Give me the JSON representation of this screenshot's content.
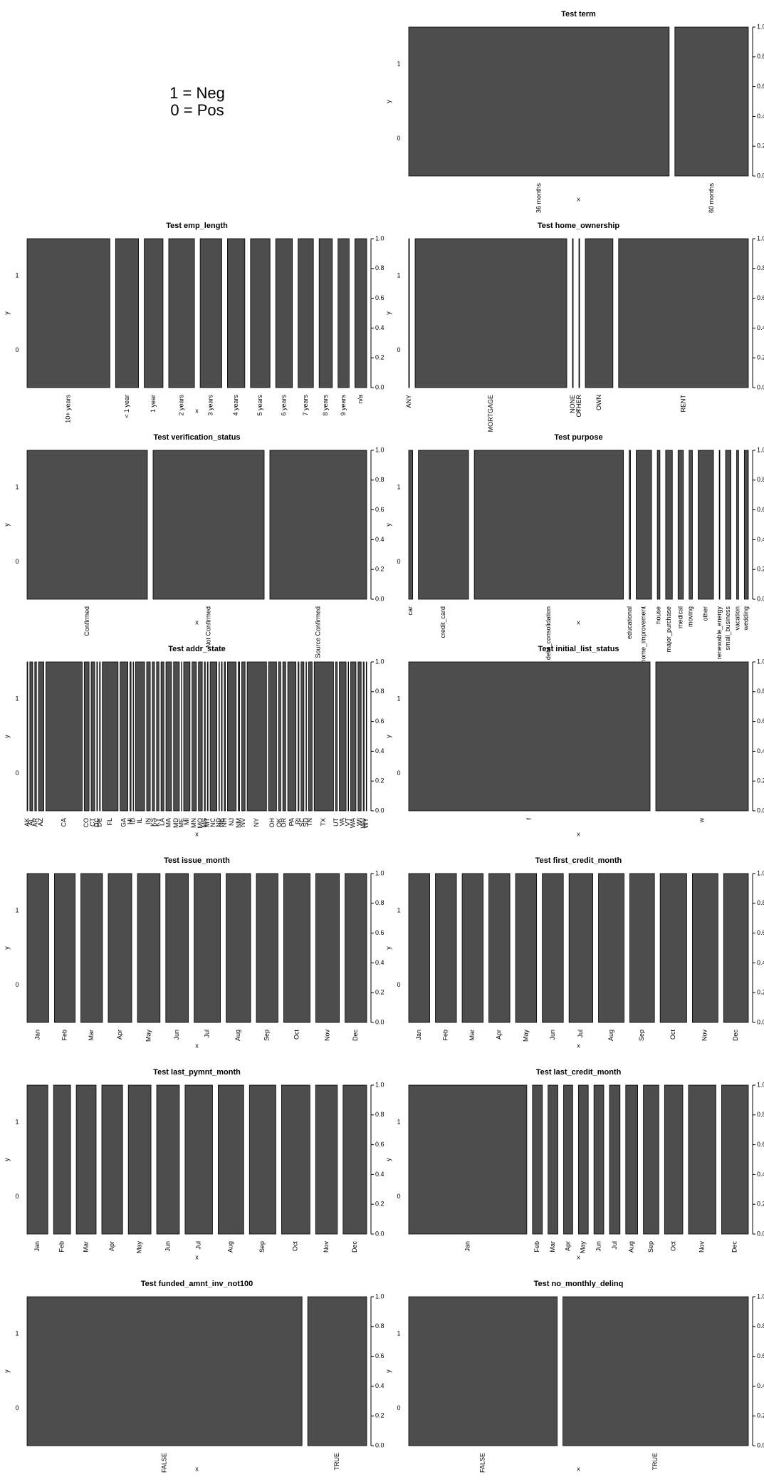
{
  "note": [
    "1 = Neg",
    "0 = Pos"
  ],
  "chart_data": [
    {
      "type": "spineplot",
      "title": "Test term",
      "categories": [
        "36 months",
        "60 months"
      ],
      "widths": [
        0.78,
        0.22
      ],
      "color": "#4d4d4d",
      "xlabel": "x",
      "ylabel": "y",
      "ycategories": [
        "1",
        "0"
      ],
      "y2lim": [
        0,
        1
      ],
      "y2ticks": [
        {
          "value": 0,
          "label": "0.0"
        },
        0.2,
        0.4,
        0.6,
        0.8,
        {
          "value": 1,
          "label": "1.0"
        }
      ]
    },
    {
      "type": "spineplot",
      "title": "Test emp_length",
      "categories": [
        "10+ years",
        "< 1 year",
        "1 year",
        "2 years",
        "3 years",
        "4 years",
        "5 years",
        "6 years",
        "7 years",
        "8 years",
        "9 years",
        "n/a"
      ],
      "widths": [
        119,
        33,
        27,
        37,
        31,
        25,
        28,
        24,
        22,
        19,
        16,
        17
      ],
      "color": "#4d4d4d",
      "xlabel": "x",
      "ylabel": "y",
      "ycategories": [
        "1",
        "0"
      ],
      "y2lim": [
        0,
        1
      ],
      "y2ticks": [
        {
          "value": 0,
          "label": "0.0"
        },
        0.2,
        0.4,
        0.6,
        0.8,
        {
          "value": 1,
          "label": "1.0"
        }
      ]
    },
    {
      "type": "spineplot",
      "title": "Test home_ownership",
      "categories": [
        "ANY",
        "MORTGAGE",
        "NONE",
        "OTHER",
        "OWN",
        "RENT"
      ],
      "widths": [
        1,
        214,
        1,
        1,
        39,
        183
      ],
      "color": "#4d4d4d",
      "xlabel": "x",
      "ylabel": "y",
      "ycategories": [
        "1",
        "0"
      ],
      "y2lim": [
        0,
        1
      ],
      "y2ticks": [
        {
          "value": 0,
          "label": "0.0"
        },
        0.2,
        0.4,
        0.6,
        0.8,
        {
          "value": 1,
          "label": "1.0"
        }
      ]
    },
    {
      "type": "spineplot",
      "title": "Test verification_status",
      "categories": [
        "Confirmed",
        "Not Confirmed",
        "Source Confirmed"
      ],
      "widths": [
        169,
        156,
        136
      ],
      "color": "#4d4d4d",
      "xlabel": "x",
      "ylabel": "y",
      "ycategories": [
        "1",
        "0"
      ],
      "y2lim": [
        0,
        1
      ],
      "y2ticks": [
        {
          "value": 0,
          "label": "0.0"
        },
        0.2,
        0.4,
        0.6,
        0.8,
        {
          "value": 1,
          "label": "1.0"
        }
      ]
    },
    {
      "type": "spineplot",
      "title": "Test purpose",
      "categories": [
        "car",
        "credit_card",
        "debt_consolidation",
        "educational",
        "home_improvement",
        "house",
        "major_purchase",
        "medical",
        "moving",
        "other",
        "renewable_energy",
        "small_business",
        "vacation",
        "wedding"
      ],
      "widths": [
        6,
        75,
        223,
        2,
        23,
        4,
        10,
        8,
        5,
        23,
        1,
        8,
        3,
        6
      ],
      "color": "#4d4d4d",
      "xlabel": "x",
      "ylabel": "y",
      "ycategories": [
        "1",
        "0"
      ],
      "y2lim": [
        0,
        1
      ],
      "y2ticks": [
        {
          "value": 0,
          "label": "0.0"
        },
        0.2,
        0.4,
        0.6,
        0.8,
        {
          "value": 1,
          "label": "1.0"
        }
      ]
    },
    {
      "type": "spineplot",
      "title": "Test addr_state",
      "categories": [
        "AK",
        "AL",
        "AR",
        "AZ",
        "CA",
        "CO",
        "CT",
        "DC",
        "DE",
        "FL",
        "GA",
        "HI",
        "ID",
        "IL",
        "IN",
        "KS",
        "KY",
        "LA",
        "MA",
        "MD",
        "ME",
        "MI",
        "MN",
        "MO",
        "MS",
        "MT",
        "NC",
        "ND",
        "NE",
        "NH",
        "NJ",
        "NM",
        "NV",
        "NY",
        "OH",
        "OK",
        "OR",
        "PA",
        "RI",
        "SC",
        "SD",
        "TN",
        "TX",
        "UT",
        "VA",
        "VT",
        "WA",
        "WI",
        "WV",
        "WY"
      ],
      "widths": [
        3,
        12,
        7,
        22,
        150,
        20,
        15,
        3,
        3,
        65,
        32,
        5,
        1,
        38,
        15,
        9,
        10,
        12,
        23,
        24,
        1,
        26,
        18,
        16,
        4,
        3,
        28,
        2,
        3,
        5,
        36,
        6,
        14,
        80,
        33,
        9,
        12,
        34,
        4,
        12,
        2,
        15,
        80,
        7,
        28,
        2,
        22,
        13,
        4,
        2
      ],
      "color": "#4d4d4d",
      "xlabel": "x",
      "ylabel": "y",
      "ycategories": [
        "1",
        "0"
      ],
      "y2lim": [
        0,
        1
      ],
      "y2ticks": [
        {
          "value": 0,
          "label": "0.0"
        },
        0.2,
        0.4,
        0.6,
        0.8,
        {
          "value": 1,
          "label": "1.0"
        }
      ]
    },
    {
      "type": "spineplot",
      "title": "Test initial_list_status",
      "categories": [
        "f",
        "w"
      ],
      "widths": [
        339,
        130
      ],
      "color": "#4d4d4d",
      "xlabel": "x",
      "ylabel": "y",
      "ycategories": [
        "1",
        "0"
      ],
      "y2lim": [
        0,
        1
      ],
      "y2ticks": [
        {
          "value": 0,
          "label": "0.0"
        },
        0.2,
        0.4,
        0.6,
        0.8,
        {
          "value": 1,
          "label": "1.0"
        }
      ]
    },
    {
      "type": "spineplot",
      "title": "Test issue_month",
      "categories": [
        "Jan",
        "Feb",
        "Mar",
        "Apr",
        "May",
        "Jun",
        "Jul",
        "Aug",
        "Sep",
        "Oct",
        "Nov",
        "Dec"
      ],
      "widths": [
        23,
        22,
        23,
        25,
        24,
        24,
        28,
        26,
        23,
        28,
        25,
        23
      ],
      "color": "#4d4d4d",
      "xlabel": "x",
      "ylabel": "y",
      "ycategories": [
        "1",
        "0"
      ],
      "y2lim": [
        0,
        1
      ],
      "y2ticks": [
        {
          "value": 0,
          "label": "0.0"
        },
        0.2,
        0.4,
        0.6,
        0.8,
        {
          "value": 1,
          "label": "1.0"
        }
      ]
    },
    {
      "type": "spineplot",
      "title": "Test first_credit_month",
      "categories": [
        "Jan",
        "Feb",
        "Mar",
        "Apr",
        "May",
        "Jun",
        "Jul",
        "Aug",
        "Sep",
        "Oct",
        "Nov",
        "Dec"
      ],
      "widths": [
        23,
        23,
        23,
        23,
        23,
        23,
        26,
        28,
        27,
        29,
        28,
        27
      ],
      "color": "#4d4d4d",
      "xlabel": "x",
      "ylabel": "y",
      "ycategories": [
        "1",
        "0"
      ],
      "y2lim": [
        0,
        1
      ],
      "y2ticks": [
        {
          "value": 0,
          "label": "0.0"
        },
        0.2,
        0.4,
        0.6,
        0.8,
        {
          "value": 1,
          "label": "1.0"
        }
      ]
    },
    {
      "type": "spineplot",
      "title": "Test last_pymnt_month",
      "categories": [
        "Jan",
        "Feb",
        "Mar",
        "Apr",
        "May",
        "Jun",
        "Jul",
        "Aug",
        "Sep",
        "Oct",
        "Nov",
        "Dec"
      ],
      "widths": [
        22,
        18,
        21,
        22,
        24,
        24,
        29,
        27,
        28,
        30,
        23,
        25
      ],
      "color": "#4d4d4d",
      "xlabel": "x",
      "ylabel": "y",
      "ycategories": [
        "1",
        "0"
      ],
      "y2lim": [
        0,
        1
      ],
      "y2ticks": [
        {
          "value": 0,
          "label": "0.0"
        },
        0.2,
        0.4,
        0.6,
        0.8,
        {
          "value": 1,
          "label": "1.0"
        }
      ]
    },
    {
      "type": "spineplot",
      "title": "Test last_credit_month",
      "categories": [
        "Jan",
        "Feb",
        "Mar",
        "Apr",
        "May",
        "Jun",
        "Jul",
        "Aug",
        "Sep",
        "Oct",
        "Nov",
        "Dec"
      ],
      "widths": [
        168,
        14,
        14,
        13,
        14,
        14,
        15,
        17,
        22,
        26,
        39,
        38
      ],
      "color": "#4d4d4d",
      "xlabel": "x",
      "ylabel": "y",
      "ycategories": [
        "1",
        "0"
      ],
      "y2lim": [
        0,
        1
      ],
      "y2ticks": [
        {
          "value": 0,
          "label": "0.0"
        },
        0.2,
        0.4,
        0.6,
        0.8,
        {
          "value": 1,
          "label": "1.0"
        }
      ]
    },
    {
      "type": "spineplot",
      "title": "Test funded_amnt_inv_not100",
      "categories": [
        "FALSE",
        "TRUE"
      ],
      "widths": [
        387,
        83
      ],
      "color": "#4d4d4d",
      "xlabel": "x",
      "ylabel": "y",
      "ycategories": [
        "1",
        "0"
      ],
      "y2lim": [
        0,
        1
      ],
      "y2ticks": [
        {
          "value": 0,
          "label": "0.0"
        },
        0.2,
        0.4,
        0.6,
        0.8,
        {
          "value": 1,
          "label": "1.0"
        }
      ]
    },
    {
      "type": "spineplot",
      "title": "Test no_monthly_delinq",
      "categories": [
        "FALSE",
        "TRUE"
      ],
      "widths": [
        209,
        261
      ],
      "color": "#4d4d4d",
      "xlabel": "x",
      "ylabel": "y",
      "ycategories": [
        "1",
        "0"
      ],
      "y2lim": [
        0,
        1
      ],
      "y2ticks": [
        {
          "value": 0,
          "label": "0.0"
        },
        0.2,
        0.4,
        0.6,
        0.8,
        {
          "value": 1,
          "label": "1.0"
        }
      ]
    }
  ]
}
